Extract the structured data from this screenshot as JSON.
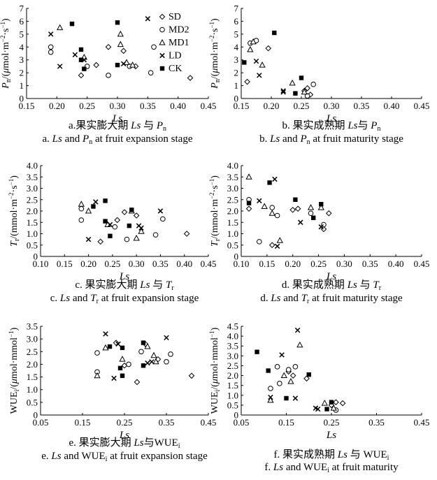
{
  "legend": [
    {
      "key": "SD",
      "label": "SD",
      "marker": "diamond"
    },
    {
      "key": "MD2",
      "label": "MD2",
      "marker": "circle"
    },
    {
      "key": "MD1",
      "label": "MD1",
      "marker": "triangle"
    },
    {
      "key": "LD",
      "label": "LD",
      "marker": "cross"
    },
    {
      "key": "CK",
      "label": "CK",
      "marker": "square"
    }
  ],
  "chart_data": [
    {
      "id": "a",
      "type": "scatter",
      "xlabel": "Ls",
      "ylabel": "Pn/(μmol·m⁻²·s⁻¹)",
      "xlim": [
        0.15,
        0.45
      ],
      "ylim": [
        0,
        7
      ],
      "xticks": [
        "0.15",
        "0.20",
        "0.25",
        "0.30",
        "0.35",
        "0.40",
        "0.45"
      ],
      "yticks": [
        "0",
        "1",
        "2",
        "3",
        "4",
        "5",
        "6",
        "7"
      ],
      "caption_cn": "a.果实膨大期 Ls 与 Pn",
      "caption_en": "a. Ls and Pn at fruit expansion stage",
      "series": [
        {
          "key": "SD",
          "points": [
            [
              0.24,
              1.8
            ],
            [
              0.265,
              2.6
            ],
            [
              0.285,
              4.0
            ],
            [
              0.31,
              3.7
            ],
            [
              0.33,
              2.5
            ],
            [
              0.42,
              1.6
            ]
          ]
        },
        {
          "key": "MD2",
          "points": [
            [
              0.19,
              4.0
            ],
            [
              0.19,
              3.6
            ],
            [
              0.25,
              2.5
            ],
            [
              0.285,
              1.8
            ],
            [
              0.32,
              2.5
            ],
            [
              0.355,
              2.0
            ],
            [
              0.36,
              4.0
            ]
          ]
        },
        {
          "key": "MD1",
          "points": [
            [
              0.205,
              5.5
            ],
            [
              0.245,
              3.2
            ],
            [
              0.305,
              5.0
            ],
            [
              0.305,
              4.2
            ],
            [
              0.315,
              2.8
            ],
            [
              0.325,
              2.6
            ]
          ]
        },
        {
          "key": "LD",
          "points": [
            [
              0.19,
              5.0
            ],
            [
              0.205,
              2.5
            ],
            [
              0.23,
              3.4
            ],
            [
              0.245,
              3.0
            ],
            [
              0.31,
              2.7
            ],
            [
              0.35,
              6.2
            ]
          ]
        },
        {
          "key": "CK",
          "points": [
            [
              0.225,
              5.8
            ],
            [
              0.24,
              3.8
            ],
            [
              0.24,
              3.0
            ],
            [
              0.245,
              2.3
            ],
            [
              0.3,
              5.9
            ],
            [
              0.3,
              2.6
            ]
          ]
        }
      ]
    },
    {
      "id": "b",
      "type": "scatter",
      "xlabel": "Ls",
      "ylabel": "Pn/(μmol·m⁻²·s⁻¹)",
      "xlim": [
        0.15,
        0.45
      ],
      "ylim": [
        0,
        7
      ],
      "xticks": [
        "0.15",
        "0.20",
        "0.25",
        "0.30",
        "0.35",
        "0.40",
        "0.45"
      ],
      "yticks": [
        "0",
        "1",
        "2",
        "3",
        "4",
        "5",
        "6",
        "7"
      ],
      "caption_cn": "b. 果实成熟期 Ls与 Pn",
      "caption_en": "b. Ls and Pn at fruit maturity stage",
      "series": [
        {
          "key": "SD",
          "points": [
            [
              0.16,
              1.3
            ],
            [
              0.195,
              3.9
            ],
            [
              0.255,
              0.6
            ],
            [
              0.26,
              0.8
            ],
            [
              0.265,
              0.3
            ]
          ]
        },
        {
          "key": "MD2",
          "points": [
            [
              0.165,
              4.3
            ],
            [
              0.175,
              4.5
            ],
            [
              0.26,
              0.2
            ],
            [
              0.27,
              1.1
            ]
          ]
        },
        {
          "key": "MD1",
          "points": [
            [
              0.165,
              3.8
            ],
            [
              0.17,
              4.4
            ],
            [
              0.185,
              2.6
            ],
            [
              0.235,
              1.2
            ],
            [
              0.255,
              0.5
            ]
          ]
        },
        {
          "key": "LD",
          "points": [
            [
              0.175,
              2.9
            ],
            [
              0.18,
              1.8
            ],
            [
              0.22,
              0.5
            ],
            [
              0.22,
              0.6
            ]
          ]
        },
        {
          "key": "CK",
          "points": [
            [
              0.155,
              2.8
            ],
            [
              0.205,
              5.1
            ],
            [
              0.24,
              0.4
            ],
            [
              0.25,
              1.6
            ]
          ]
        }
      ]
    },
    {
      "id": "c",
      "type": "scatter",
      "xlabel": "Ls",
      "ylabel": "Tr/(mmol·m⁻²·s⁻¹)",
      "xlim": [
        0.1,
        0.45
      ],
      "ylim": [
        0,
        4
      ],
      "xticks": [
        "0.10",
        "0.15",
        "0.20",
        "0.25",
        "0.30",
        "0.35",
        "0.40",
        "0.45"
      ],
      "yticks": [
        "0",
        "0.5",
        "1.0",
        "1.5",
        "2.0",
        "2.5",
        "3.0",
        "3.5",
        "4.0"
      ],
      "caption_cn": "c. 果实膨大期 Ls 与 Tr",
      "caption_en": "c. Ls and Tr at fruit expansion stage",
      "series": [
        {
          "key": "SD",
          "points": [
            [
              0.225,
              0.65
            ],
            [
              0.26,
              1.6
            ],
            [
              0.275,
              1.95
            ],
            [
              0.3,
              1.8
            ],
            [
              0.405,
              1.0
            ]
          ]
        },
        {
          "key": "MD2",
          "points": [
            [
              0.185,
              2.1
            ],
            [
              0.185,
              1.6
            ],
            [
              0.255,
              1.3
            ],
            [
              0.28,
              0.75
            ],
            [
              0.34,
              0.95
            ],
            [
              0.355,
              1.65
            ]
          ]
        },
        {
          "key": "MD1",
          "points": [
            [
              0.185,
              2.3
            ],
            [
              0.2,
              2.0
            ],
            [
              0.24,
              1.4
            ],
            [
              0.29,
              2.0
            ],
            [
              0.3,
              0.8
            ],
            [
              0.31,
              1.1
            ]
          ]
        },
        {
          "key": "LD",
          "points": [
            [
              0.2,
              0.75
            ],
            [
              0.215,
              2.4
            ],
            [
              0.245,
              1.4
            ],
            [
              0.305,
              1.35
            ],
            [
              0.31,
              1.25
            ],
            [
              0.35,
              2.0
            ]
          ]
        },
        {
          "key": "CK",
          "points": [
            [
              0.21,
              2.2
            ],
            [
              0.235,
              2.45
            ],
            [
              0.235,
              1.55
            ],
            [
              0.245,
              0.9
            ],
            [
              0.29,
              2.05
            ],
            [
              0.285,
              1.35
            ]
          ]
        }
      ]
    },
    {
      "id": "d",
      "type": "scatter",
      "xlabel": "Ls",
      "ylabel": "Tr/(mmol·m⁻²·s⁻¹)",
      "xlim": [
        0.1,
        0.45
      ],
      "ylim": [
        0,
        4
      ],
      "xticks": [
        "0.10",
        "0.15",
        "0.20",
        "0.25",
        "0.30",
        "0.35",
        "0.40",
        "0.45"
      ],
      "yticks": [
        "0",
        "0.5",
        "1.0",
        "1.5",
        "2.0",
        "2.5",
        "3.0",
        "3.5",
        "4.0"
      ],
      "caption_cn": "d. 果实成熟期 Ls 与 Tr",
      "caption_en": "d. Ls and Tr at fruit maturity stage",
      "series": [
        {
          "key": "SD",
          "points": [
            [
              0.115,
              2.1
            ],
            [
              0.16,
              0.5
            ],
            [
              0.2,
              2.05
            ],
            [
              0.21,
              2.1
            ],
            [
              0.26,
              1.2
            ],
            [
              0.27,
              1.9
            ]
          ]
        },
        {
          "key": "MD2",
          "points": [
            [
              0.115,
              2.5
            ],
            [
              0.135,
              0.65
            ],
            [
              0.16,
              2.15
            ],
            [
              0.17,
              1.8
            ],
            [
              0.235,
              1.9
            ],
            [
              0.26,
              1.4
            ]
          ]
        },
        {
          "key": "MD1",
          "points": [
            [
              0.115,
              3.5
            ],
            [
              0.145,
              2.2
            ],
            [
              0.16,
              1.9
            ],
            [
              0.175,
              0.7
            ],
            [
              0.235,
              2.15
            ],
            [
              0.255,
              2.15
            ]
          ]
        },
        {
          "key": "LD",
          "points": [
            [
              0.135,
              2.45
            ],
            [
              0.165,
              3.4
            ],
            [
              0.17,
              0.45
            ],
            [
              0.215,
              1.5
            ],
            [
              0.255,
              1.3
            ]
          ]
        },
        {
          "key": "CK",
          "points": [
            [
              0.115,
              2.35
            ],
            [
              0.155,
              3.25
            ],
            [
              0.205,
              2.5
            ],
            [
              0.24,
              1.7
            ],
            [
              0.255,
              2.3
            ]
          ]
        }
      ]
    },
    {
      "id": "e",
      "type": "scatter",
      "xlabel": "Ls",
      "ylabel": "WUEi/(μmol·mmol⁻¹)",
      "xlim": [
        0.05,
        0.45
      ],
      "ylim": [
        0,
        3.5
      ],
      "xticks": [
        "0.05",
        "0.15",
        "0.25",
        "0.35",
        "0.45"
      ],
      "yticks": [
        "0",
        "0.5",
        "1.0",
        "1.5",
        "2.0",
        "2.5",
        "3.0",
        "3.5"
      ],
      "caption_cn": "e. 果实膨大期 Ls与WUEi",
      "caption_en": "e. Ls and WUEi at fruit expansion stage",
      "series": [
        {
          "key": "SD",
          "points": [
            [
              0.23,
              2.85
            ],
            [
              0.25,
              1.95
            ],
            [
              0.28,
              1.3
            ],
            [
              0.3,
              2.8
            ],
            [
              0.33,
              2.2
            ],
            [
              0.41,
              1.55
            ]
          ]
        },
        {
          "key": "MD2",
          "points": [
            [
              0.185,
              2.45
            ],
            [
              0.185,
              1.7
            ],
            [
              0.26,
              2.0
            ],
            [
              0.29,
              2.5
            ],
            [
              0.35,
              2.1
            ],
            [
              0.36,
              2.4
            ]
          ]
        },
        {
          "key": "MD1",
          "points": [
            [
              0.185,
              1.55
            ],
            [
              0.205,
              2.65
            ],
            [
              0.245,
              2.2
            ],
            [
              0.305,
              2.7
            ],
            [
              0.32,
              2.35
            ],
            [
              0.325,
              2.1
            ]
          ]
        },
        {
          "key": "LD",
          "points": [
            [
              0.205,
              3.2
            ],
            [
              0.225,
              1.45
            ],
            [
              0.235,
              2.8
            ],
            [
              0.305,
              2.05
            ],
            [
              0.315,
              2.1
            ],
            [
              0.35,
              3.05
            ]
          ]
        },
        {
          "key": "CK",
          "points": [
            [
              0.215,
              2.7
            ],
            [
              0.24,
              1.85
            ],
            [
              0.245,
              1.55
            ],
            [
              0.245,
              2.65
            ],
            [
              0.295,
              2.85
            ],
            [
              0.295,
              1.95
            ]
          ]
        }
      ]
    },
    {
      "id": "f",
      "type": "scatter",
      "xlabel": "Ls",
      "ylabel": "WUEi/(μmol·mmol⁻¹)",
      "xlim": [
        0.05,
        0.45
      ],
      "ylim": [
        0,
        4.5
      ],
      "xticks": [
        "0.05",
        "0.15",
        "0.25",
        "0.35",
        "0.45"
      ],
      "yticks": [
        "0",
        "0.5",
        "1.0",
        "1.5",
        "2.0",
        "2.5",
        "3.0",
        "3.5",
        "4.0",
        "4.5"
      ],
      "caption_cn": "f. 果实成熟期 Ls 与 WUEi",
      "caption_en": "f. Ls and WUEi at fruit maturity",
      "series": [
        {
          "key": "SD",
          "points": [
            [
              0.155,
              2.2
            ],
            [
              0.165,
              2.0
            ],
            [
              0.195,
              1.85
            ],
            [
              0.25,
              0.5
            ],
            [
              0.26,
              0.65
            ],
            [
              0.275,
              0.6
            ]
          ]
        },
        {
          "key": "MD2",
          "points": [
            [
              0.115,
              1.35
            ],
            [
              0.13,
              2.45
            ],
            [
              0.135,
              1.6
            ],
            [
              0.155,
              2.3
            ],
            [
              0.17,
              2.45
            ],
            [
              0.26,
              0.25
            ]
          ]
        },
        {
          "key": "MD1",
          "points": [
            [
              0.115,
              0.75
            ],
            [
              0.145,
              2.0
            ],
            [
              0.16,
              1.7
            ],
            [
              0.18,
              3.55
            ],
            [
              0.235,
              0.6
            ],
            [
              0.255,
              0.35
            ]
          ]
        },
        {
          "key": "LD",
          "points": [
            [
              0.115,
              0.9
            ],
            [
              0.14,
              3.05
            ],
            [
              0.17,
              0.85
            ],
            [
              0.175,
              4.3
            ],
            [
              0.215,
              0.35
            ],
            [
              0.22,
              0.3
            ]
          ]
        },
        {
          "key": "CK",
          "points": [
            [
              0.085,
              3.2
            ],
            [
              0.11,
              2.25
            ],
            [
              0.15,
              0.85
            ],
            [
              0.2,
              2.05
            ],
            [
              0.24,
              0.3
            ],
            [
              0.25,
              0.65
            ]
          ]
        }
      ]
    }
  ]
}
